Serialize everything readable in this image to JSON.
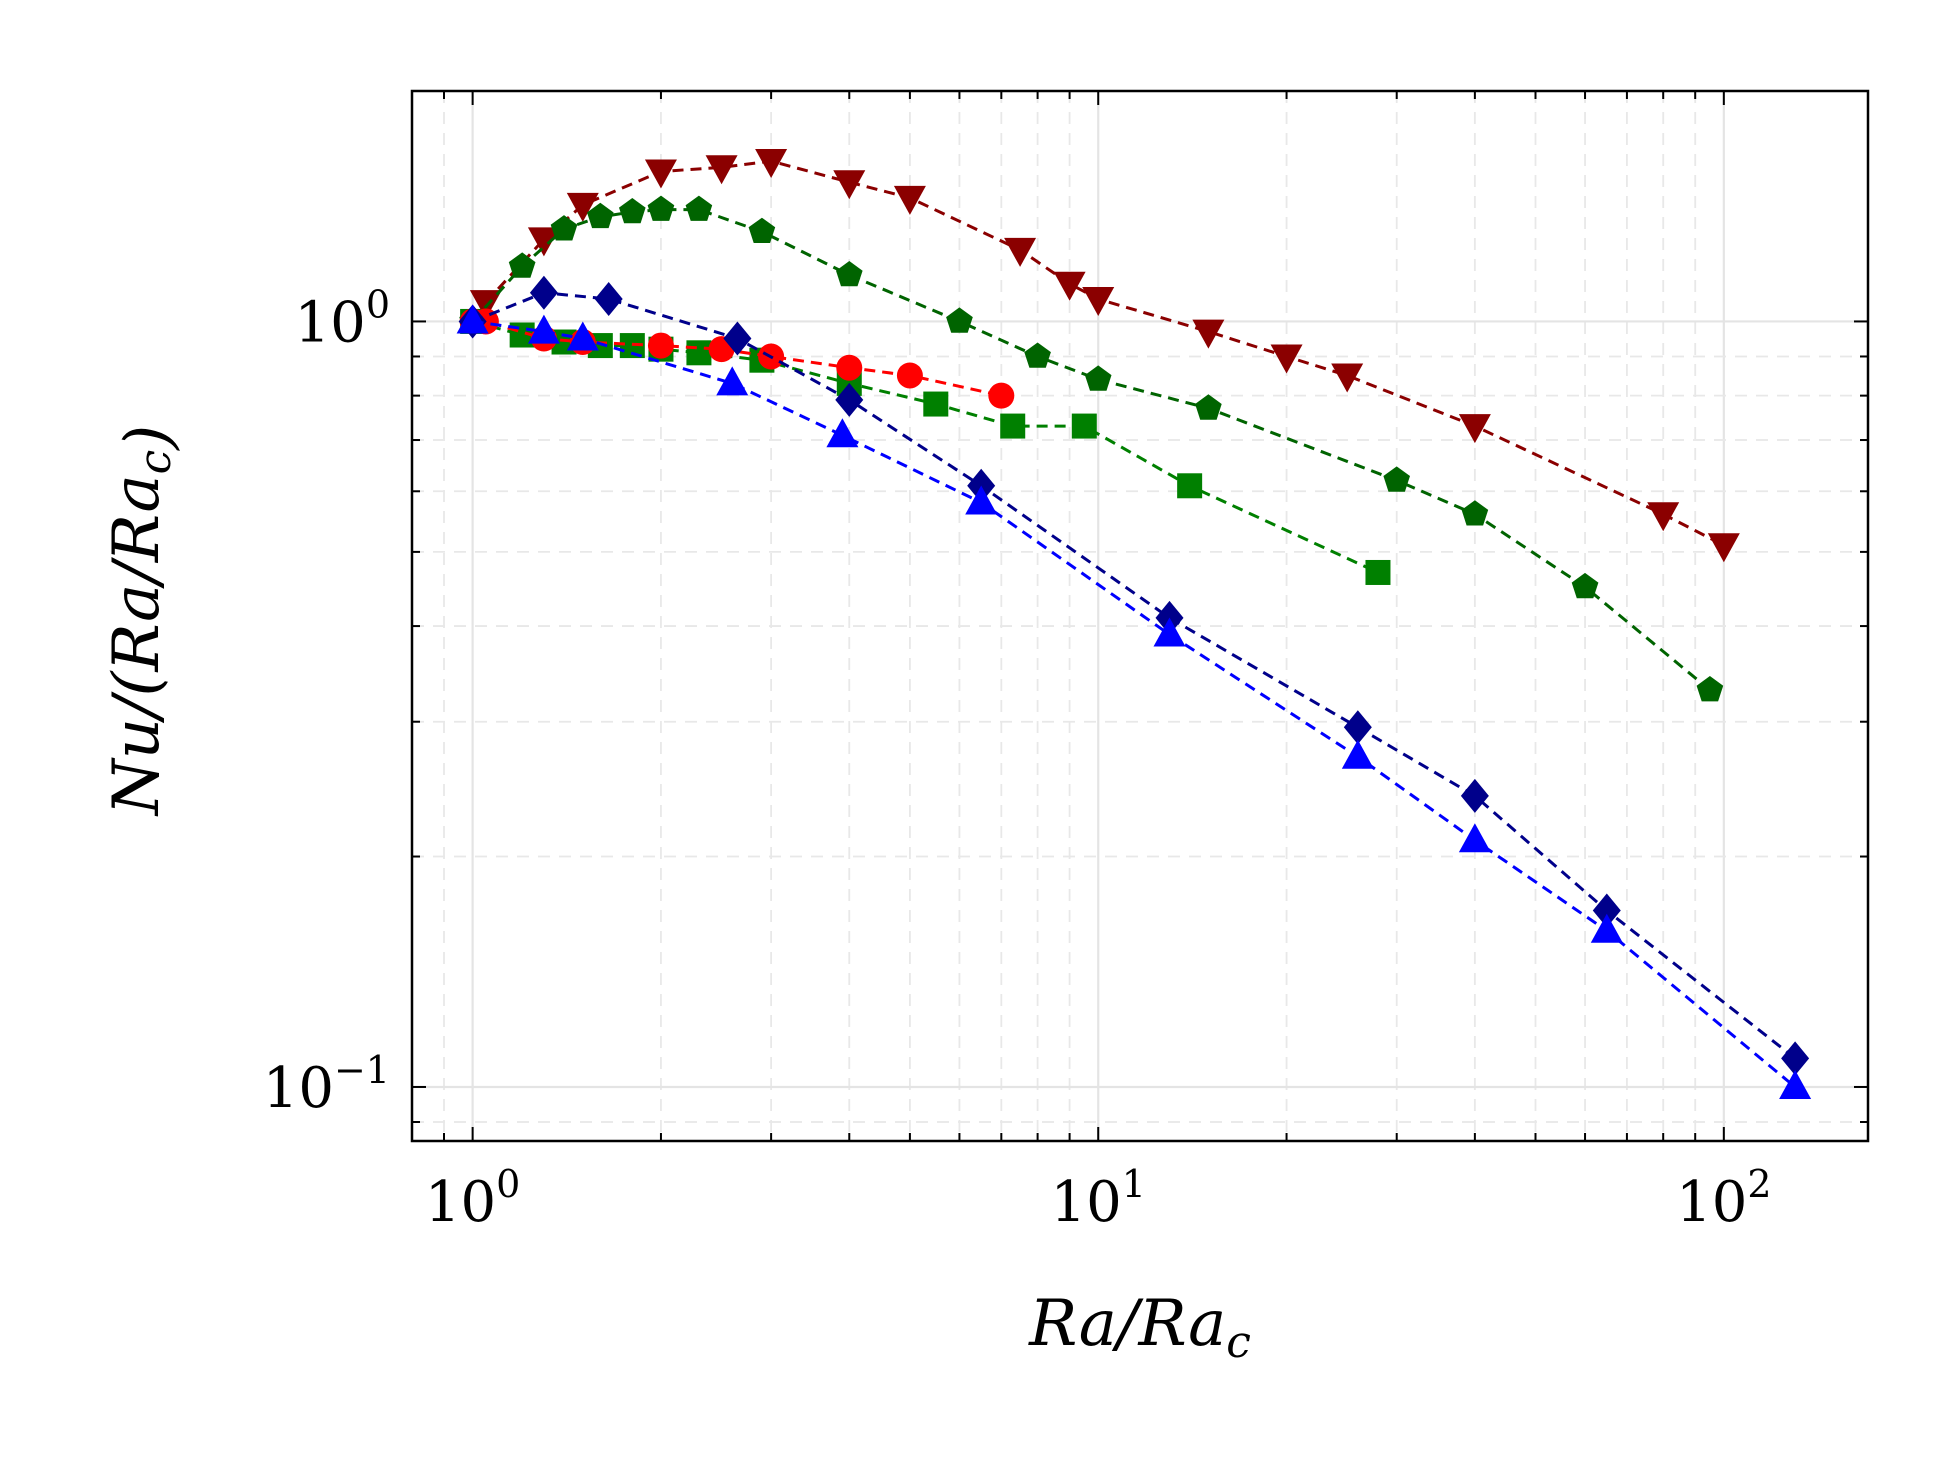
{
  "chart_data": {
    "type": "line",
    "title": "",
    "xlabel": "Ra/Ra_c",
    "ylabel": "Nu/(Ra/Ra_c)",
    "xlabel_parts": [
      {
        "t": "Ra/Ra",
        "sub": "c"
      }
    ],
    "ylabel_parts": [
      {
        "t": "Nu/(Ra/Ra",
        "sub": "c"
      },
      {
        "t": ")"
      }
    ],
    "xscale": "log",
    "yscale": "log",
    "xlim": [
      0.8,
      170
    ],
    "ylim": [
      0.085,
      2.0
    ],
    "grid": true,
    "legend": "none",
    "x_ticks": [
      {
        "value": 1,
        "base": "10",
        "exp": "0"
      },
      {
        "value": 10,
        "base": "10",
        "exp": "1"
      },
      {
        "value": 100,
        "base": "10",
        "exp": "2"
      }
    ],
    "y_ticks": [
      {
        "value": 1,
        "base": "10",
        "exp": "0"
      },
      {
        "value": 0.1,
        "base": "10",
        "exp": "−1"
      }
    ],
    "series": [
      {
        "name": "series-dark-red-down-triangle",
        "color": "#8b0000",
        "marker": "triangle-down",
        "x": [
          1.05,
          1.3,
          1.5,
          2.0,
          2.5,
          3.0,
          4.0,
          5.0,
          7.5,
          9.0,
          10.0,
          15.0,
          20.0,
          25.0,
          40.0,
          80.0,
          100.0
        ],
        "y": [
          1.06,
          1.28,
          1.42,
          1.57,
          1.59,
          1.62,
          1.52,
          1.45,
          1.24,
          1.12,
          1.07,
          0.97,
          0.9,
          0.85,
          0.73,
          0.56,
          0.51
        ]
      },
      {
        "name": "series-green-pentagon",
        "color": "#006400",
        "marker": "pentagon",
        "x": [
          1.0,
          1.2,
          1.4,
          1.6,
          1.8,
          2.0,
          2.3,
          2.9,
          4.0,
          6.0,
          8.0,
          10.0,
          15.0,
          30.0,
          40.0,
          60.0,
          95.0
        ],
        "y": [
          1.0,
          1.18,
          1.32,
          1.37,
          1.39,
          1.4,
          1.4,
          1.31,
          1.15,
          1.0,
          0.9,
          0.84,
          0.77,
          0.62,
          0.56,
          0.45,
          0.33
        ]
      },
      {
        "name": "series-green-square",
        "color": "#008000",
        "marker": "square",
        "x": [
          1.0,
          1.2,
          1.4,
          1.6,
          1.8,
          2.0,
          2.3,
          2.9,
          4.0,
          5.5,
          7.3,
          9.5,
          14.0,
          28.0
        ],
        "y": [
          1.0,
          0.96,
          0.94,
          0.93,
          0.93,
          0.92,
          0.91,
          0.89,
          0.83,
          0.78,
          0.73,
          0.73,
          0.61,
          0.47
        ]
      },
      {
        "name": "series-red-circle",
        "color": "#ff0000",
        "marker": "circle",
        "x": [
          1.0,
          1.05,
          1.3,
          1.5,
          2.0,
          2.5,
          3.0,
          4.0,
          5.0,
          7.0
        ],
        "y": [
          1.0,
          1.0,
          0.95,
          0.94,
          0.93,
          0.92,
          0.9,
          0.87,
          0.85,
          0.8
        ]
      },
      {
        "name": "series-navy-diamond",
        "color": "#00008b",
        "marker": "diamond",
        "x": [
          1.0,
          1.3,
          1.65,
          2.65,
          4.0,
          6.5,
          13.0,
          26.0,
          40.0,
          65.0,
          130.0
        ],
        "y": [
          1.0,
          1.09,
          1.07,
          0.95,
          0.79,
          0.61,
          0.41,
          0.295,
          0.24,
          0.17,
          0.109
        ]
      },
      {
        "name": "series-blue-triangle",
        "color": "#0000ff",
        "marker": "triangle-up",
        "x": [
          1.0,
          1.3,
          1.5,
          2.6,
          3.9,
          6.5,
          13.0,
          26.0,
          40.0,
          65.0,
          130.0
        ],
        "y": [
          1.0,
          0.97,
          0.95,
          0.83,
          0.71,
          0.58,
          0.39,
          0.27,
          0.21,
          0.16,
          0.1
        ]
      }
    ]
  }
}
